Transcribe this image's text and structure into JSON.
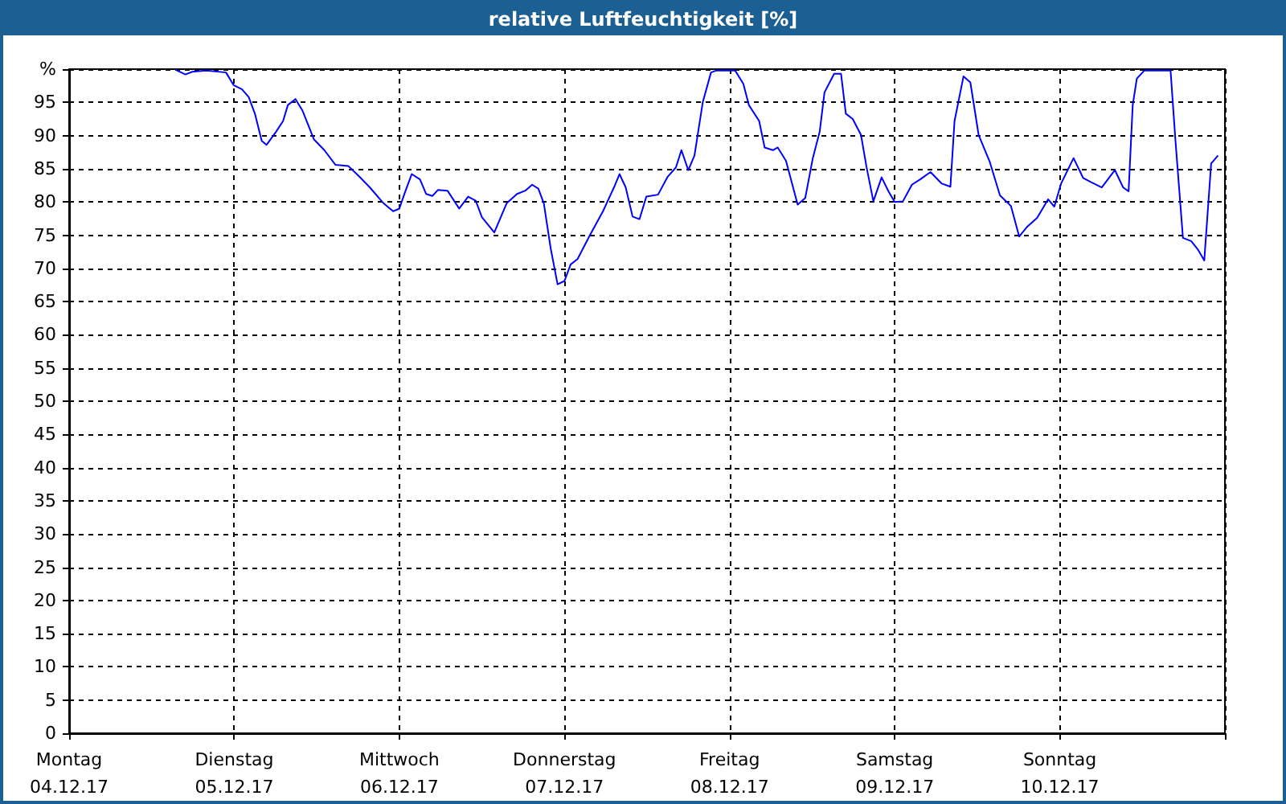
{
  "chart_data": {
    "type": "line",
    "title": "relative Luftfeuchtigkeit [%]",
    "xlim": [
      "--12-04",
      "--12-11"
    ],
    "xticks": [
      {
        "value": "--12-04",
        "label": "Montag\n04.12.17"
      },
      {
        "value": "--12-05",
        "label": "Dienstag\n05.12.17"
      },
      {
        "value": "--12-06",
        "label": "Mittwoch\n06.12.17"
      },
      {
        "value": "--12-07",
        "label": "Donnerstag\n07.12.17"
      },
      {
        "value": "--12-08",
        "label": "Freitag\n08.12.17"
      },
      {
        "value": "--12-09",
        "label": "Samstag\n09.12.17"
      },
      {
        "value": "--12-10",
        "label": "Sonntag\n10.12.17"
      },
      {
        "value": "--12-11",
        "label": null
      }
    ],
    "ylim": [
      0,
      100
    ],
    "yticks": [
      0,
      5,
      10,
      15,
      20,
      25,
      30,
      35,
      40,
      45,
      50,
      55,
      60,
      65,
      70,
      75,
      80,
      85,
      90,
      95,
      {
        "value": 100,
        "label": "%"
      }
    ],
    "grid": true,
    "marker": "none",
    "line_style": "solid",
    "series": [
      {
        "color": "#0000ff",
        "x": [
          "--12-04T15:30",
          "--12-04T16:54",
          "--12-04T17:54",
          "--12-04T20:00",
          "--12-04T22:48",
          "--12-04T23:54",
          "--12-05T01:06",
          "--12-05T02:06",
          "--12-05T03:00",
          "--12-05T04:00",
          "--12-05T04:42",
          "--12-05T06:06",
          "--12-05T07:06",
          "--12-05T07:48",
          "--12-05T08:54",
          "--12-05T09:54",
          "--12-05T11:36",
          "--12-05T13:06",
          "--12-05T14:42",
          "--12-05T16:36",
          "--12-05T18:12",
          "--12-05T19:42",
          "--12-05T21:42",
          "--12-05T23:06",
          "--12-06T00:00",
          "--12-06T00:48",
          "--12-06T01:48",
          "--12-06T03:00",
          "--12-06T03:54",
          "--12-06T04:48",
          "--12-06T05:36",
          "--12-06T07:00",
          "--12-06T08:42",
          "--12-06T10:00",
          "--12-06T11:06",
          "--12-06T12:00",
          "--12-06T13:48",
          "--12-06T15:36",
          "--12-06T17:06",
          "--12-06T18:18",
          "--12-06T19:18",
          "--12-06T20:12",
          "--12-06T21:00",
          "--12-06T22:00",
          "--12-06T23:00",
          "--12-07T00:00",
          "--12-07T00:54",
          "--12-07T01:54",
          "--12-07T03:42",
          "--12-07T05:36",
          "--12-07T07:12",
          "--12-07T08:00",
          "--12-07T08:54",
          "--12-07T09:54",
          "--12-07T10:54",
          "--12-07T11:54",
          "--12-07T13:36",
          "--12-07T15:00",
          "--12-07T16:12",
          "--12-07T17:00",
          "--12-07T18:00",
          "--12-07T18:54",
          "--12-07T20:06",
          "--12-07T21:18",
          "--12-07T22:06",
          "--12-08T00:48",
          "--12-08T02:00",
          "--12-08T02:48",
          "--12-08T04:18",
          "--12-08T05:06",
          "--12-08T06:18",
          "--12-08T07:00",
          "--12-08T08:12",
          "--12-08T09:54",
          "--12-08T11:00",
          "--12-08T12:06",
          "--12-08T13:06",
          "--12-08T13:48",
          "--12-08T15:12",
          "--12-08T16:12",
          "--12-08T16:54",
          "--12-08T17:54",
          "--12-08T19:06",
          "--12-08T19:54",
          "--12-08T20:54",
          "--12-08T22:06",
          "--12-08T23:06",
          "--12-09T00:00",
          "--12-09T01:12",
          "--12-09T02:30",
          "--12-09T03:42",
          "--12-09T05:12",
          "--12-09T06:48",
          "--12-09T08:06",
          "--12-09T08:42",
          "--12-09T10:00",
          "--12-09T11:00",
          "--12-09T12:12",
          "--12-09T13:48",
          "--12-09T15:18",
          "--12-09T16:54",
          "--12-09T18:06",
          "--12-09T19:12",
          "--12-09T20:42",
          "--12-09T22:18",
          "--12-09T23:12",
          "--12-10T00:12",
          "--12-10T02:00",
          "--12-10T03:24",
          "--12-10T04:30",
          "--12-10T06:06",
          "--12-10T08:00",
          "--12-10T09:12",
          "--12-10T10:00",
          "--12-10T10:36",
          "--12-10T11:12",
          "--12-10T12:18",
          "--12-10T16:06",
          "--12-10T16:48",
          "--12-10T17:54",
          "--12-10T19:06",
          "--12-10T20:06",
          "--12-10T21:00",
          "--12-10T22:00",
          "--12-10T23:00"
        ],
        "values": [
          99.9,
          99.2,
          99.6,
          99.8,
          99.5,
          97.6,
          97.0,
          95.8,
          93.3,
          89.2,
          88.6,
          90.6,
          92.2,
          94.6,
          95.5,
          93.8,
          89.4,
          87.8,
          85.6,
          85.4,
          83.8,
          82.2,
          79.8,
          78.6,
          79.0,
          81.4,
          84.2,
          83.4,
          81.2,
          80.9,
          81.8,
          81.7,
          79.0,
          80.8,
          80.2,
          77.7,
          75.4,
          79.8,
          81.2,
          81.7,
          82.6,
          82.0,
          79.8,
          73.0,
          67.6,
          68.1,
          70.6,
          71.4,
          75.0,
          78.6,
          82.2,
          84.2,
          82.2,
          77.8,
          77.4,
          80.8,
          81.1,
          83.8,
          85.2,
          87.8,
          84.8,
          87.0,
          95.0,
          99.5,
          99.8,
          99.8,
          97.8,
          94.6,
          92.2,
          88.2,
          87.8,
          88.2,
          86.2,
          79.6,
          80.6,
          86.6,
          90.6,
          96.5,
          99.3,
          99.3,
          93.3,
          92.5,
          90.1,
          85.3,
          80.1,
          83.7,
          81.6,
          80.0,
          80.1,
          82.6,
          83.4,
          84.5,
          82.8,
          82.3,
          92.2,
          98.9,
          98.0,
          90.1,
          86.1,
          81.0,
          79.4,
          74.8,
          76.2,
          77.6,
          80.4,
          79.3,
          82.8,
          86.6,
          83.6,
          83.0,
          82.2,
          84.8,
          82.2,
          81.6,
          94.6,
          98.6,
          99.8,
          99.8,
          89.4,
          74.6,
          74.1,
          72.8,
          71.2,
          85.8,
          87.0
        ]
      }
    ]
  }
}
